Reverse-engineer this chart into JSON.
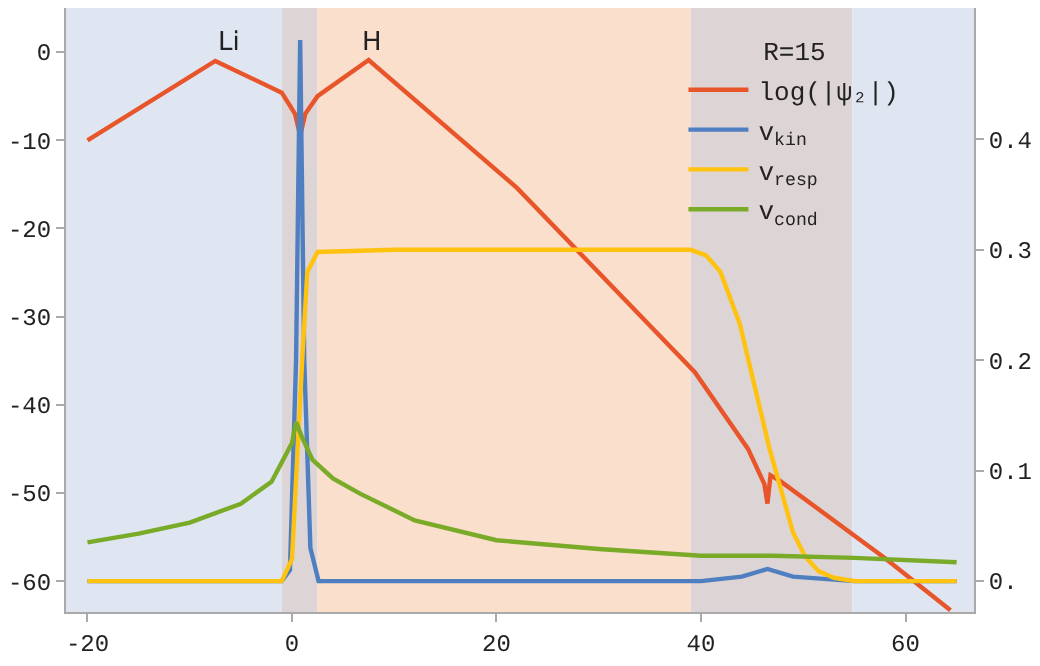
{
  "chart_data": {
    "type": "line",
    "legend_title": "R=15",
    "legend": "top right",
    "grid": false,
    "xlim": [
      -22.1,
      66.7
    ],
    "xticks": [
      -20,
      0,
      20,
      40,
      60
    ],
    "ylim": [
      -63.5,
      5
    ],
    "yticks": [
      -60,
      -50,
      -40,
      -30,
      -20,
      -10,
      0
    ],
    "y2lim": [
      -0.028,
      0.519
    ],
    "y2ticks": [
      {
        "value": 0,
        "label": "0."
      },
      0.1,
      0.2,
      0.3,
      0.4
    ],
    "annotations": [
      "Li",
      "H"
    ],
    "bands": [
      {
        "axis": "x",
        "from": -22.1,
        "to": -1,
        "color": "#dfe6f2"
      },
      {
        "axis": "x",
        "from": -1,
        "to": 2.5,
        "color": "#ddd5d5"
      },
      {
        "axis": "x",
        "from": 2.5,
        "to": 39,
        "color": "#f9dfcc"
      },
      {
        "axis": "x",
        "from": 39,
        "to": 54.8,
        "color": "#ddd5d5"
      },
      {
        "axis": "x",
        "from": 54.8,
        "to": 66.7,
        "color": "#dfe6f2"
      }
    ],
    "series": [
      {
        "name": "log(|ψ₂|)",
        "color": "#e8552a",
        "x": [
          -20,
          -7.5,
          -1,
          0.3,
          0.8,
          1.3,
          2.5,
          7.5,
          22,
          39.4,
          44.6,
          46.2,
          46.5,
          46.8,
          47.7,
          58,
          64.4
        ],
        "values": [
          -10,
          -1,
          -4.6,
          -7,
          -9.5,
          -7,
          -5,
          -0.9,
          -15.4,
          -36.3,
          -45,
          -49,
          -51.2,
          -48,
          -48.6,
          -57.4,
          -63.3
        ]
      },
      {
        "name": "v$_{kin}$",
        "color": "#4f7fc0",
        "axis": "y2",
        "x": [
          -20,
          -1,
          -0.2,
          0.4,
          0.8,
          1.2,
          1.8,
          2.6,
          10,
          40,
          44,
          46.5,
          49,
          55,
          65
        ],
        "values": [
          0,
          0,
          0.01,
          0.2,
          0.49,
          0.2,
          0.03,
          0,
          0,
          0,
          0.004,
          0.011,
          0.004,
          0,
          0
        ]
      },
      {
        "name": "v$_{resp}$",
        "color": "#ffc20e",
        "axis": "y2",
        "x": [
          -20,
          -1,
          0,
          1,
          1.5,
          2.5,
          10,
          39,
          40.5,
          41.9,
          43.8,
          46.7,
          49,
          50.2,
          51.5,
          53,
          55,
          65
        ],
        "values": [
          0,
          0,
          0.02,
          0.2,
          0.28,
          0.298,
          0.3,
          0.3,
          0.295,
          0.28,
          0.233,
          0.12,
          0.044,
          0.022,
          0.009,
          0.003,
          0,
          0
        ]
      },
      {
        "name": "v$_{cond}$",
        "color": "#7aab28",
        "axis": "y2",
        "x": [
          -20,
          -15,
          -10,
          -5,
          -2,
          0,
          0.4,
          1,
          2,
          4,
          6.7,
          12,
          20,
          30,
          40,
          47,
          55,
          65
        ],
        "values": [
          0.035,
          0.043,
          0.053,
          0.07,
          0.09,
          0.125,
          0.144,
          0.13,
          0.11,
          0.093,
          0.079,
          0.055,
          0.037,
          0.029,
          0.023,
          0.023,
          0.021,
          0.017
        ]
      }
    ]
  }
}
